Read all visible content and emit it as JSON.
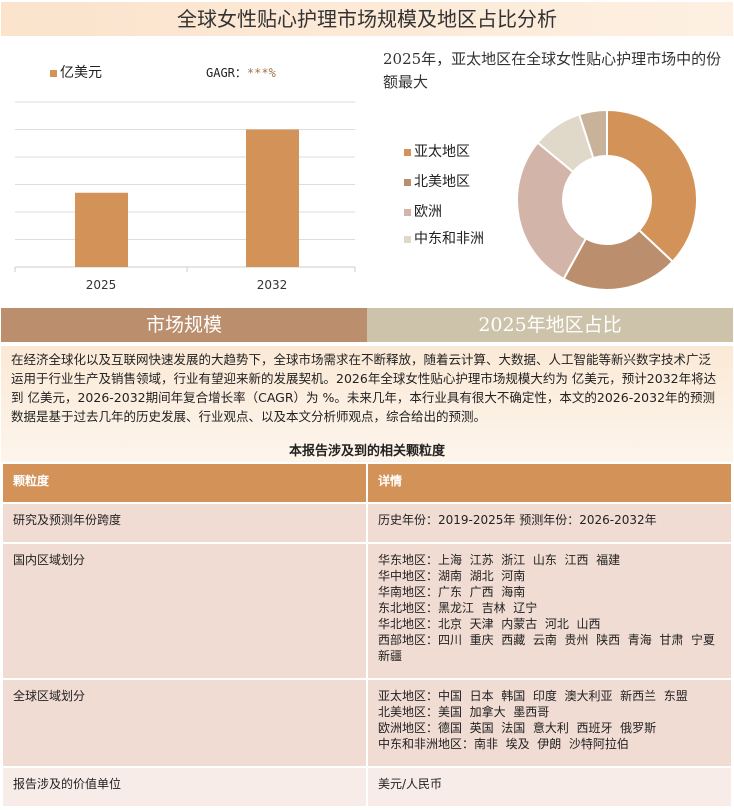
{
  "title": "全球女性贴心护理市场规模及地区占比分析",
  "chart_data": [
    {
      "type": "bar",
      "categories": [
        "2025",
        "2032"
      ],
      "values": [
        2.7,
        5.0
      ],
      "ylim": [
        0,
        6
      ],
      "grid": true,
      "legend": "亿美元",
      "annotation": "GAGR：",
      "annotation_value": "***%",
      "color": "#d39257"
    },
    {
      "type": "pie",
      "donut": true,
      "title": "2025年，亚太地区在全球女性贴心护理市场中的份额最大",
      "labels": [
        "亚太地区",
        "北美地区",
        "欧洲",
        "中东和非洲",
        ""
      ],
      "values": [
        37,
        21,
        28,
        9,
        5
      ],
      "colors": [
        "#d39257",
        "#bb8f6d",
        "#d2b4a9",
        "#e0d8c8",
        "#c8b39a"
      ],
      "legend": "left"
    }
  ],
  "tabs": [
    "市场规模",
    "2025年地区占比"
  ],
  "description": "在经济全球化以及互联网快速发展的大趋势下，全球市场需求在不断释放，随着云计算、大数据、人工智能等新兴数字技术广泛运用于行业生产及销售领域，行业有望迎来新的发展契机。2026年全球女性贴心护理市场规模大约为 亿美元，预计2032年将达到 亿美元，2026-2032期间年复合增长率（CAGR）为 %。未来几年，本行业具有很大不确定性，本文的2026-2032年的预测数据是基于过去几年的历史发展、行业观点、以及本文分析师观点，综合给出的预测。",
  "table": {
    "caption": "本报告涉及到的相关颗粒度",
    "headers": [
      "颗粒度",
      "详情"
    ],
    "rows": [
      {
        "k": "研究及预测年份跨度",
        "v": [
          "历史年份：2019-2025年 预测年份：2026-2032年"
        ]
      },
      {
        "k": "国内区域划分",
        "v": [
          "华东地区：上海  江苏  浙江  山东  江西  福建",
          "华中地区：湖南  湖北  河南",
          "华南地区：广东  广西  海南",
          "东北地区：黑龙江  吉林  辽宁",
          "华北地区：北京  天津  内蒙古  河北  山西",
          "西部地区：四川  重庆  西藏  云南  贵州  陕西  青海  甘肃  宁夏  新疆"
        ]
      },
      {
        "k": "全球区域划分",
        "v": [
          "亚太地区：中国  日本  韩国  印度  澳大利亚  新西兰  东盟",
          "北美地区：美国  加拿大  墨西哥",
          "欧洲地区：德国  英国  法国  意大利  西班牙  俄罗斯",
          "中东和非洲地区：南非  埃及  伊朗  沙特阿拉伯"
        ]
      },
      {
        "k": "报告涉及的价值单位",
        "v": [
          "美元/人民币"
        ]
      }
    ]
  }
}
